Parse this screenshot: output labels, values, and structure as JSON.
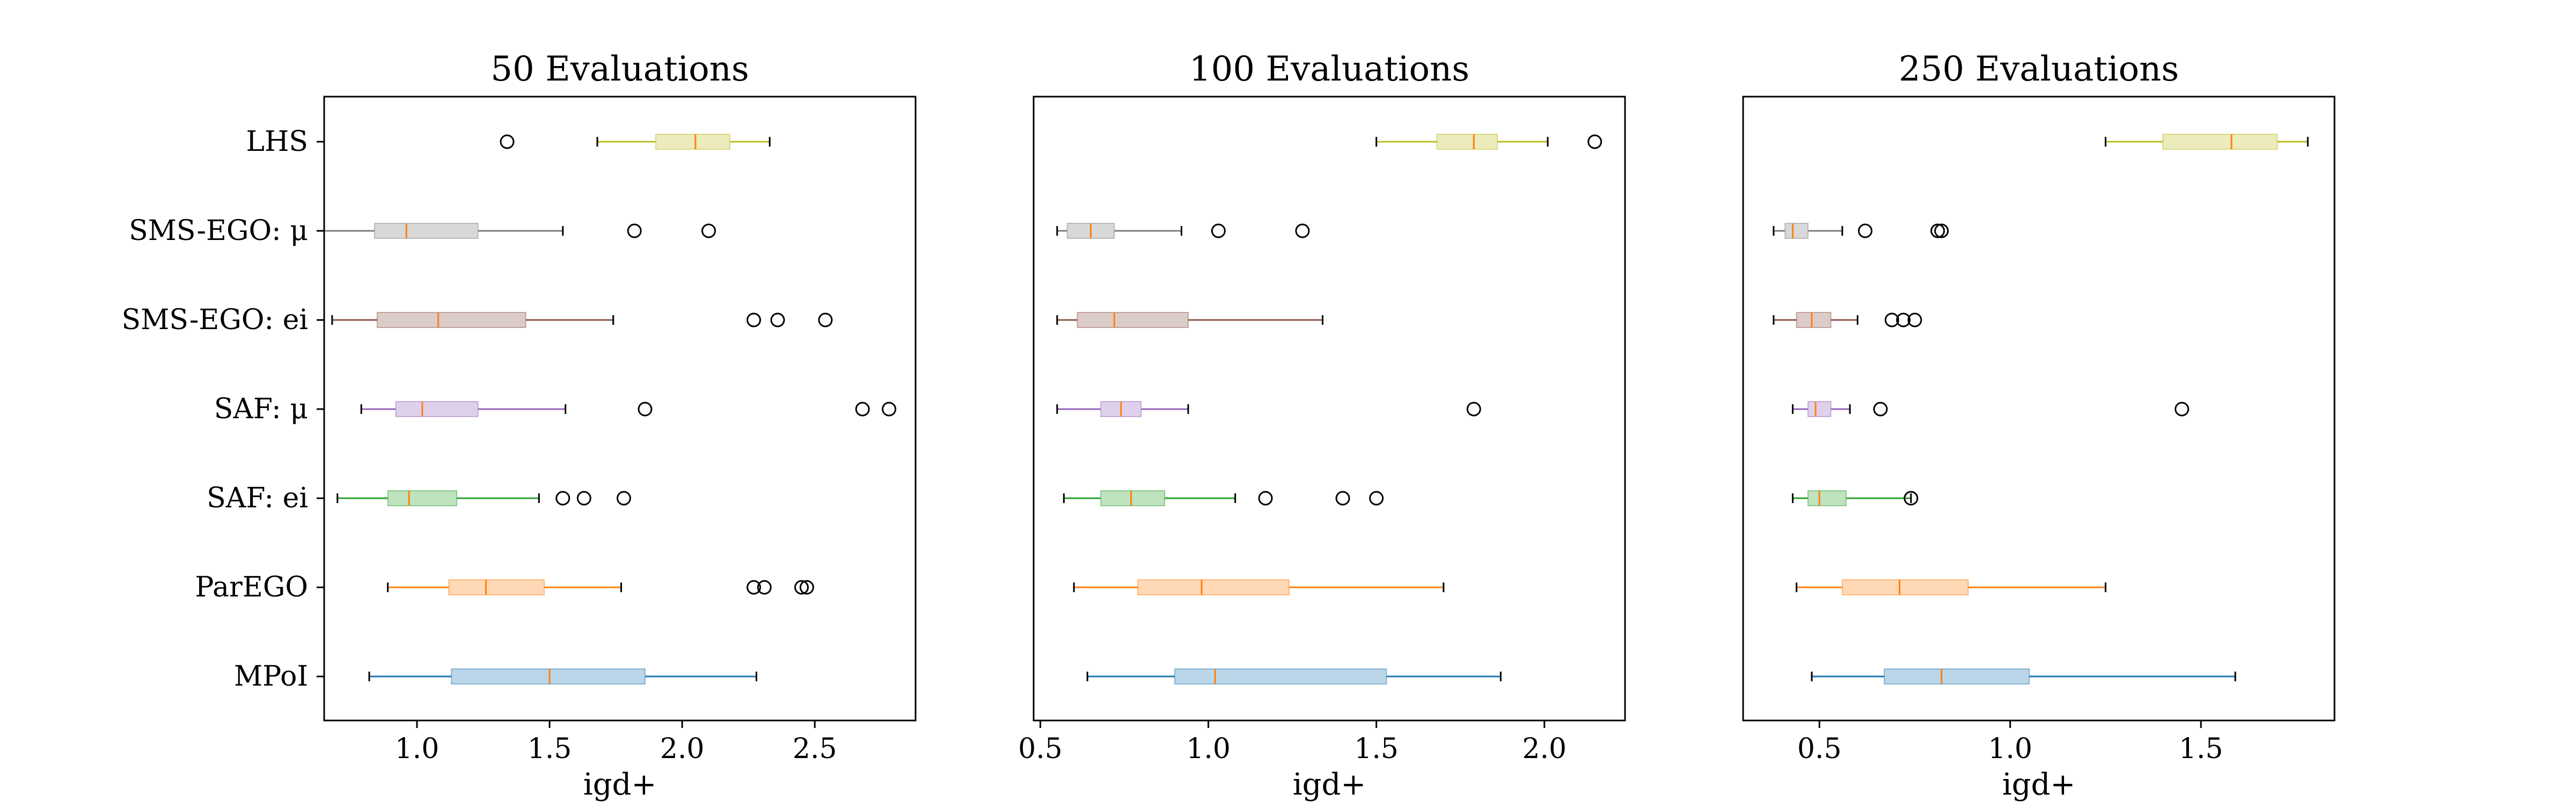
{
  "categories": [
    "LHS",
    "SMS-EGO: μ",
    "SMS-EGO: ei",
    "SAF: μ",
    "SAF: ei",
    "ParEGO",
    "MPoI"
  ],
  "chart_data": [
    {
      "type": "boxplot",
      "orientation": "horizontal",
      "title": "50 Evaluations",
      "xlabel": "igd+",
      "ylabel": "",
      "xlim": [
        0.65,
        2.88
      ],
      "xticks": [
        1.0,
        1.5,
        2.0,
        2.5
      ],
      "xtick_labels": [
        "1.0",
        "1.5",
        "2.0",
        "2.5"
      ],
      "grid": false,
      "boxes": [
        {
          "name": "LHS",
          "color": "#bcbd22",
          "whisker_low": 1.68,
          "q1": 1.9,
          "median": 2.05,
          "q3": 2.18,
          "whisker_high": 2.33,
          "outliers": [
            1.34
          ]
        },
        {
          "name": "SMS-EGO: μ",
          "color": "#7f7f7f",
          "whisker_low": 0.65,
          "q1": 0.84,
          "median": 0.96,
          "q3": 1.23,
          "whisker_high": 1.55,
          "outliers": [
            1.82,
            2.1
          ]
        },
        {
          "name": "SMS-EGO: ei",
          "color": "#8c564b",
          "whisker_low": 0.68,
          "q1": 0.85,
          "median": 1.08,
          "q3": 1.41,
          "whisker_high": 1.74,
          "outliers": [
            2.27,
            2.36,
            2.54
          ]
        },
        {
          "name": "SAF: μ",
          "color": "#9467bd",
          "whisker_low": 0.79,
          "q1": 0.92,
          "median": 1.02,
          "q3": 1.23,
          "whisker_high": 1.56,
          "outliers": [
            1.86,
            2.68,
            2.78
          ]
        },
        {
          "name": "SAF: ei",
          "color": "#2ca02c",
          "whisker_low": 0.7,
          "q1": 0.89,
          "median": 0.97,
          "q3": 1.15,
          "whisker_high": 1.46,
          "outliers": [
            1.55,
            1.63,
            1.78
          ]
        },
        {
          "name": "ParEGO",
          "color": "#ff7f0e",
          "whisker_low": 0.89,
          "q1": 1.12,
          "median": 1.26,
          "q3": 1.48,
          "whisker_high": 1.77,
          "outliers": [
            2.27,
            2.31,
            2.45,
            2.47
          ]
        },
        {
          "name": "MPoI",
          "color": "#1f77b4",
          "whisker_low": 0.82,
          "q1": 1.13,
          "median": 1.5,
          "q3": 1.86,
          "whisker_high": 2.28,
          "outliers": []
        }
      ]
    },
    {
      "type": "boxplot",
      "orientation": "horizontal",
      "title": "100 Evaluations",
      "xlabel": "igd+",
      "ylabel": "",
      "xlim": [
        0.48,
        2.24
      ],
      "xticks": [
        0.5,
        1.0,
        1.5,
        2.0
      ],
      "xtick_labels": [
        "0.5",
        "1.0",
        "1.5",
        "2.0"
      ],
      "grid": false,
      "boxes": [
        {
          "name": "LHS",
          "color": "#bcbd22",
          "whisker_low": 1.5,
          "q1": 1.68,
          "median": 1.79,
          "q3": 1.86,
          "whisker_high": 2.01,
          "outliers": [
            2.15
          ]
        },
        {
          "name": "SMS-EGO: μ",
          "color": "#7f7f7f",
          "whisker_low": 0.55,
          "q1": 0.58,
          "median": 0.65,
          "q3": 0.72,
          "whisker_high": 0.92,
          "outliers": [
            1.03,
            1.28
          ]
        },
        {
          "name": "SMS-EGO: ei",
          "color": "#8c564b",
          "whisker_low": 0.55,
          "q1": 0.61,
          "median": 0.72,
          "q3": 0.94,
          "whisker_high": 1.34,
          "outliers": []
        },
        {
          "name": "SAF: μ",
          "color": "#9467bd",
          "whisker_low": 0.55,
          "q1": 0.68,
          "median": 0.74,
          "q3": 0.8,
          "whisker_high": 0.94,
          "outliers": [
            1.79
          ]
        },
        {
          "name": "SAF: ei",
          "color": "#2ca02c",
          "whisker_low": 0.57,
          "q1": 0.68,
          "median": 0.77,
          "q3": 0.87,
          "whisker_high": 1.08,
          "outliers": [
            1.17,
            1.4,
            1.5
          ]
        },
        {
          "name": "ParEGO",
          "color": "#ff7f0e",
          "whisker_low": 0.6,
          "q1": 0.79,
          "median": 0.98,
          "q3": 1.24,
          "whisker_high": 1.7,
          "outliers": []
        },
        {
          "name": "MPoI",
          "color": "#1f77b4",
          "whisker_low": 0.64,
          "q1": 0.9,
          "median": 1.02,
          "q3": 1.53,
          "whisker_high": 1.87,
          "outliers": []
        }
      ]
    },
    {
      "type": "boxplot",
      "orientation": "horizontal",
      "title": "250 Evaluations",
      "xlabel": "igd+",
      "ylabel": "",
      "xlim": [
        0.3,
        1.85
      ],
      "xticks": [
        0.5,
        1.0,
        1.5
      ],
      "xtick_labels": [
        "0.5",
        "1.0",
        "1.5"
      ],
      "grid": false,
      "boxes": [
        {
          "name": "LHS",
          "color": "#bcbd22",
          "whisker_low": 1.25,
          "q1": 1.4,
          "median": 1.58,
          "q3": 1.7,
          "whisker_high": 1.78,
          "outliers": []
        },
        {
          "name": "SMS-EGO: μ",
          "color": "#7f7f7f",
          "whisker_low": 0.38,
          "q1": 0.41,
          "median": 0.43,
          "q3": 0.47,
          "whisker_high": 0.56,
          "outliers": [
            0.62,
            0.81,
            0.82
          ]
        },
        {
          "name": "SMS-EGO: ei",
          "color": "#8c564b",
          "whisker_low": 0.38,
          "q1": 0.44,
          "median": 0.48,
          "q3": 0.53,
          "whisker_high": 0.6,
          "outliers": [
            0.69,
            0.72,
            0.75
          ]
        },
        {
          "name": "SAF: μ",
          "color": "#9467bd",
          "whisker_low": 0.43,
          "q1": 0.47,
          "median": 0.49,
          "q3": 0.53,
          "whisker_high": 0.58,
          "outliers": [
            0.66,
            1.45
          ]
        },
        {
          "name": "SAF: ei",
          "color": "#2ca02c",
          "whisker_low": 0.43,
          "q1": 0.47,
          "median": 0.5,
          "q3": 0.57,
          "whisker_high": 0.74,
          "outliers": [
            0.74
          ]
        },
        {
          "name": "ParEGO",
          "color": "#ff7f0e",
          "whisker_low": 0.44,
          "q1": 0.56,
          "median": 0.71,
          "q3": 0.89,
          "whisker_high": 1.25,
          "outliers": []
        },
        {
          "name": "MPoI",
          "color": "#1f77b4",
          "whisker_low": 0.48,
          "q1": 0.67,
          "median": 0.82,
          "q3": 1.05,
          "whisker_high": 1.59,
          "outliers": []
        }
      ]
    }
  ]
}
